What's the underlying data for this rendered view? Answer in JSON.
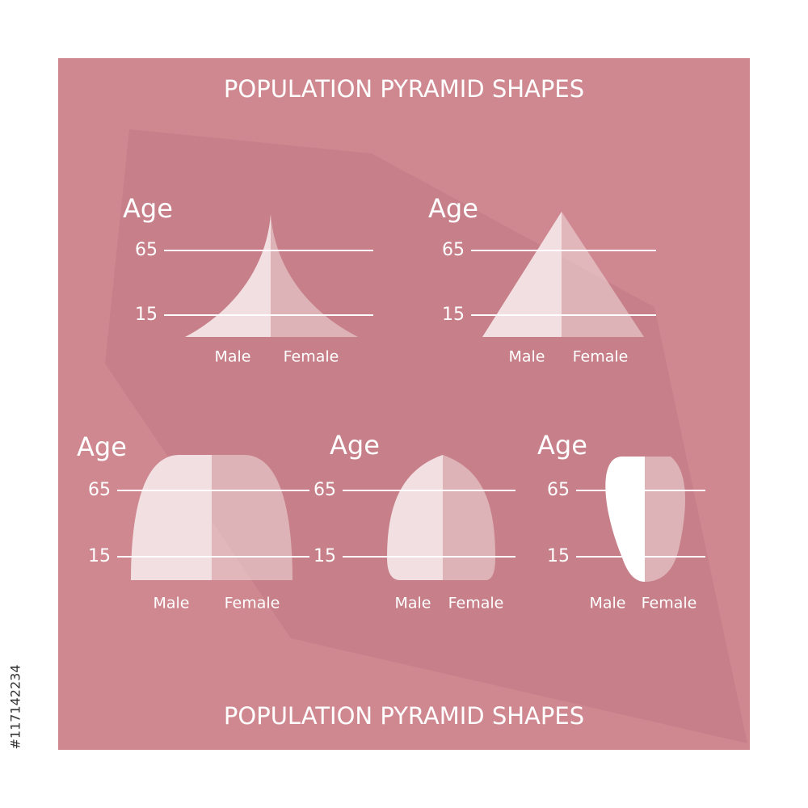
{
  "title_top": "POPULATION PYRAMID SHAPES",
  "title_bottom": "POPULATION PYRAMID SHAPES",
  "stock_id": "#117142234",
  "diagrams": [
    {
      "age_label": "Age",
      "ticks": [
        65,
        15
      ],
      "male": "Male",
      "female": "Female"
    },
    {
      "age_label": "Age",
      "ticks": [
        65,
        15
      ],
      "male": "Male",
      "female": "Female"
    },
    {
      "age_label": "Age",
      "ticks": [
        65,
        15
      ],
      "male": "Male",
      "female": "Female"
    },
    {
      "age_label": "Age",
      "ticks": [
        65,
        15
      ],
      "male": "Male",
      "female": "Female"
    },
    {
      "age_label": "Age",
      "ticks": [
        65,
        15
      ],
      "male": "Male",
      "female": "Female"
    }
  ]
}
